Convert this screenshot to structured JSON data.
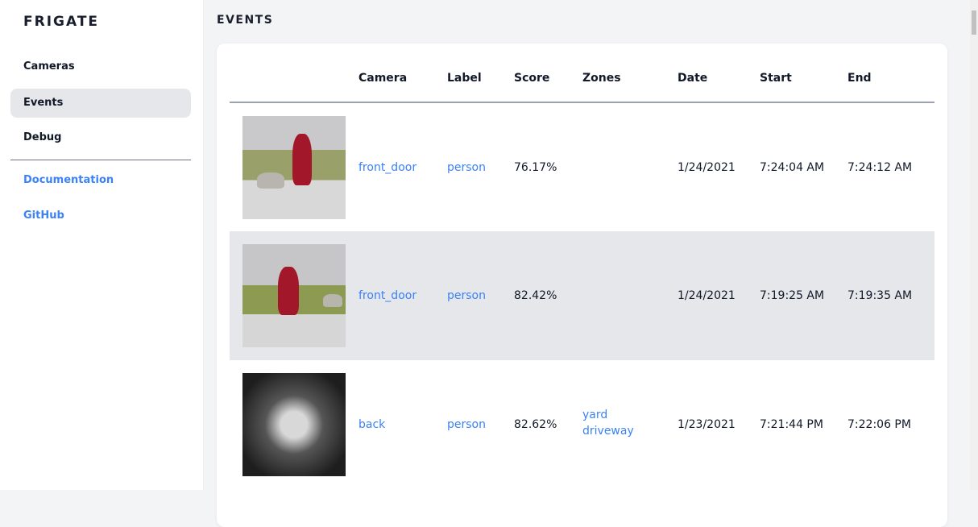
{
  "sidebar": {
    "brand": "FRIGATE",
    "items": [
      {
        "label": "Cameras"
      },
      {
        "label": "Events",
        "active": true
      },
      {
        "label": "Debug"
      }
    ],
    "links": [
      {
        "label": "Documentation"
      },
      {
        "label": "GitHub"
      }
    ]
  },
  "page": {
    "title": "EVENTS"
  },
  "table": {
    "headers": [
      "",
      "Camera",
      "Label",
      "Score",
      "Zones",
      "Date",
      "Start",
      "End"
    ],
    "rows": [
      {
        "camera": "front_door",
        "label": "person",
        "score": "76.17%",
        "zones": [
          "",
          ""
        ],
        "date": "1/24/2021",
        "start": "7:24:04 AM",
        "end": "7:24:12 AM"
      },
      {
        "camera": "front_door",
        "label": "person",
        "score": "82.42%",
        "zones": [
          "",
          ""
        ],
        "date": "1/24/2021",
        "start": "7:19:25 AM",
        "end": "7:19:35 AM"
      },
      {
        "camera": "back",
        "label": "person",
        "score": "82.62%",
        "zones": [
          "yard",
          "driveway"
        ],
        "date": "1/23/2021",
        "start": "7:21:44 PM",
        "end": "7:22:06 PM"
      }
    ]
  },
  "colors": {
    "accent": "#3b82f6",
    "active_bg": "#e5e7eb"
  }
}
